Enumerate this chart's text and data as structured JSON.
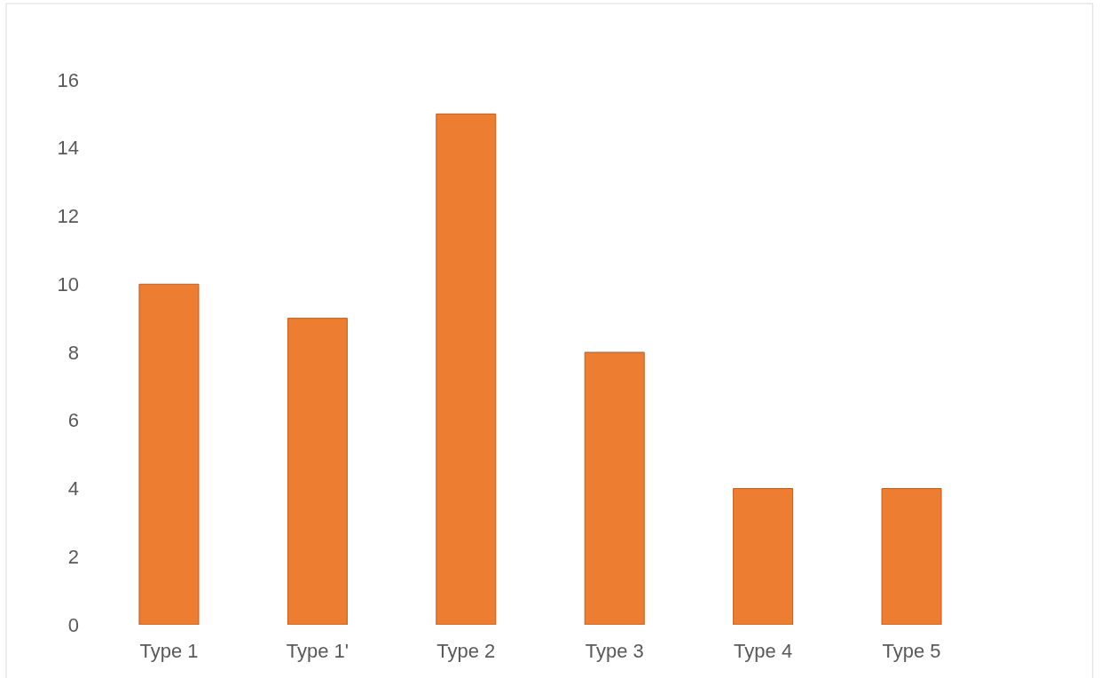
{
  "chart_data": {
    "type": "bar",
    "categories": [
      "Type 1",
      "Type 1'",
      "Type 2",
      "Type 3",
      "Type 4",
      "Type 5"
    ],
    "values": [
      10,
      9,
      15,
      8,
      4,
      4
    ],
    "color": "#ed7d31",
    "ylim": [
      0,
      16
    ],
    "yticks": [
      0,
      2,
      4,
      6,
      8,
      10,
      12,
      14,
      16
    ]
  }
}
